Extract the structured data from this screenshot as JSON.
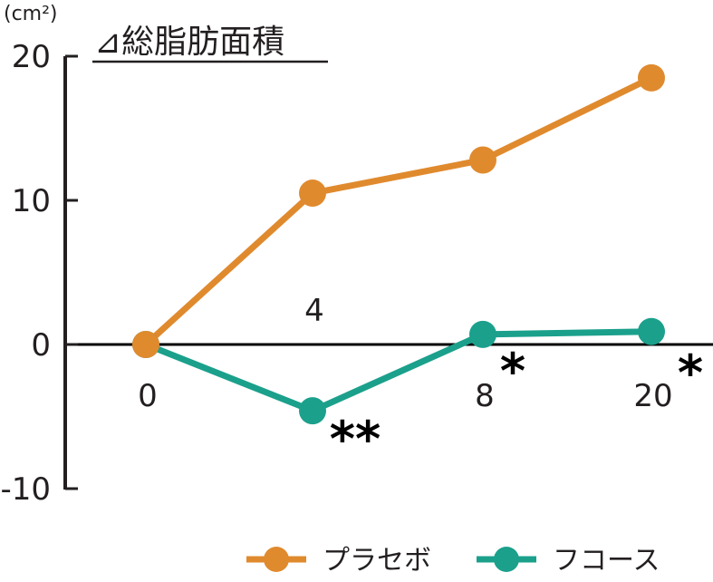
{
  "chart_data": {
    "type": "line",
    "title": "⊿総脂肪面積",
    "ylabel": "(cm²)",
    "xlabel": "",
    "x": [
      0,
      4,
      8,
      20
    ],
    "x_tick_labels": [
      "0",
      "4",
      "8",
      "20"
    ],
    "y_ticks": [
      -10,
      0,
      10,
      20
    ],
    "y_tick_labels": [
      "-10",
      "0",
      "10",
      "20"
    ],
    "ylim": [
      -10,
      20
    ],
    "grid": false,
    "legend_position": "bottom-right",
    "series": [
      {
        "name": "プラセボ",
        "color": "#e08a2e",
        "values": [
          0,
          10.5,
          12.8,
          18.5
        ]
      },
      {
        "name": "フコース",
        "color": "#1ba08c",
        "values": [
          0,
          -4.6,
          0.7,
          0.9
        ]
      }
    ],
    "annotations": [
      {
        "text": "**",
        "x": 4,
        "series": "フコース"
      },
      {
        "text": "*",
        "x": 8,
        "series": "フコース"
      },
      {
        "text": "*",
        "x": 20,
        "series": "フコース"
      }
    ]
  }
}
